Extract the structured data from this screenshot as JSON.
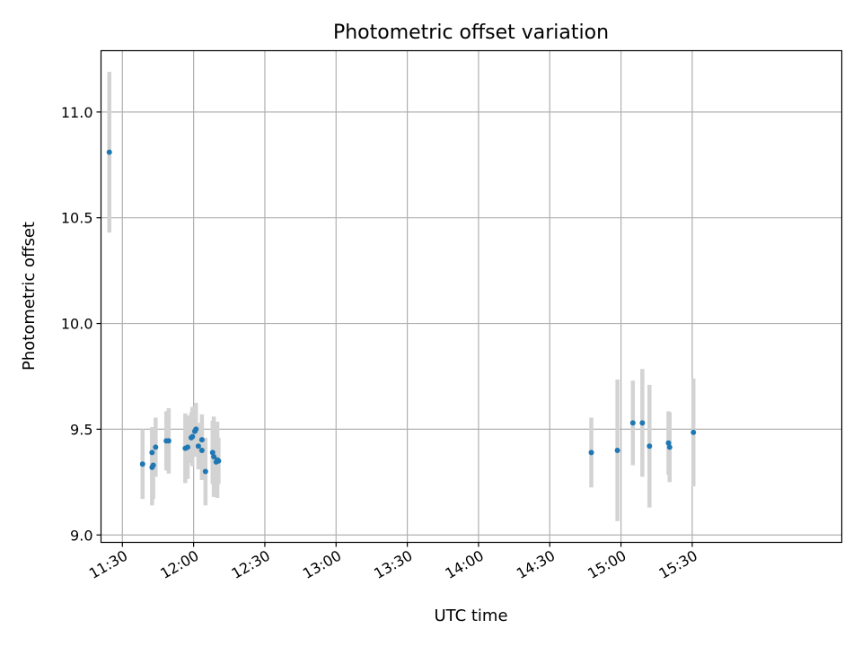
{
  "chart_data": {
    "type": "scatter",
    "title": "Photometric offset variation",
    "xlabel": "UTC time",
    "ylabel": "Photometric offset",
    "x_unit": "minutes",
    "xlim": [
      681,
      993
    ],
    "ylim": [
      8.965,
      11.29
    ],
    "x_ticks": [
      {
        "value": 690,
        "label": "11:30"
      },
      {
        "value": 720,
        "label": "12:00"
      },
      {
        "value": 750,
        "label": "12:30"
      },
      {
        "value": 780,
        "label": "13:00"
      },
      {
        "value": 810,
        "label": "13:30"
      },
      {
        "value": 840,
        "label": "14:00"
      },
      {
        "value": 870,
        "label": "14:30"
      },
      {
        "value": 900,
        "label": "15:00"
      },
      {
        "value": 930,
        "label": "15:30"
      }
    ],
    "y_ticks": [
      {
        "value": 9.0,
        "label": "9.0"
      },
      {
        "value": 9.5,
        "label": "9.5"
      },
      {
        "value": 10.0,
        "label": "10.0"
      },
      {
        "value": 10.5,
        "label": "10.5"
      },
      {
        "value": 11.0,
        "label": "11.0"
      }
    ],
    "grid": true,
    "colors": {
      "points": "#1f77b4",
      "errorbars": "#d3d3d3",
      "grid": "#b0b0b0"
    },
    "points": [
      {
        "x": 684.5,
        "y": 10.81,
        "err": 0.38
      },
      {
        "x": 698.5,
        "y": 9.335,
        "err": 0.165
      },
      {
        "x": 702.5,
        "y": 9.39,
        "err": 0.12
      },
      {
        "x": 702.5,
        "y": 9.32,
        "err": 0.18
      },
      {
        "x": 703.0,
        "y": 9.33,
        "err": 0.16
      },
      {
        "x": 704.0,
        "y": 9.415,
        "err": 0.14
      },
      {
        "x": 708.5,
        "y": 9.445,
        "err": 0.14
      },
      {
        "x": 709.5,
        "y": 9.445,
        "err": 0.155
      },
      {
        "x": 716.5,
        "y": 9.41,
        "err": 0.165
      },
      {
        "x": 717.5,
        "y": 9.415,
        "err": 0.15
      },
      {
        "x": 719.0,
        "y": 9.46,
        "err": 0.12
      },
      {
        "x": 719.5,
        "y": 9.465,
        "err": 0.14
      },
      {
        "x": 720.5,
        "y": 9.49,
        "err": 0.12
      },
      {
        "x": 721.0,
        "y": 9.5,
        "err": 0.125
      },
      {
        "x": 722.0,
        "y": 9.42,
        "err": 0.11
      },
      {
        "x": 723.5,
        "y": 9.45,
        "err": 0.12
      },
      {
        "x": 723.5,
        "y": 9.4,
        "err": 0.14
      },
      {
        "x": 725.0,
        "y": 9.3,
        "err": 0.16
      },
      {
        "x": 728.0,
        "y": 9.39,
        "err": 0.15
      },
      {
        "x": 728.5,
        "y": 9.37,
        "err": 0.19
      },
      {
        "x": 729.5,
        "y": 9.345,
        "err": 0.165
      },
      {
        "x": 730.0,
        "y": 9.355,
        "err": 0.18
      },
      {
        "x": 730.5,
        "y": 9.35,
        "err": 0.11
      },
      {
        "x": 887.5,
        "y": 9.39,
        "err": 0.165
      },
      {
        "x": 898.5,
        "y": 9.4,
        "err": 0.335
      },
      {
        "x": 905.0,
        "y": 9.53,
        "err": 0.2
      },
      {
        "x": 909.0,
        "y": 9.53,
        "err": 0.255
      },
      {
        "x": 912.0,
        "y": 9.42,
        "err": 0.29
      },
      {
        "x": 920.0,
        "y": 9.435,
        "err": 0.15
      },
      {
        "x": 920.5,
        "y": 9.415,
        "err": 0.165
      },
      {
        "x": 930.5,
        "y": 9.485,
        "err": 0.255
      }
    ]
  }
}
